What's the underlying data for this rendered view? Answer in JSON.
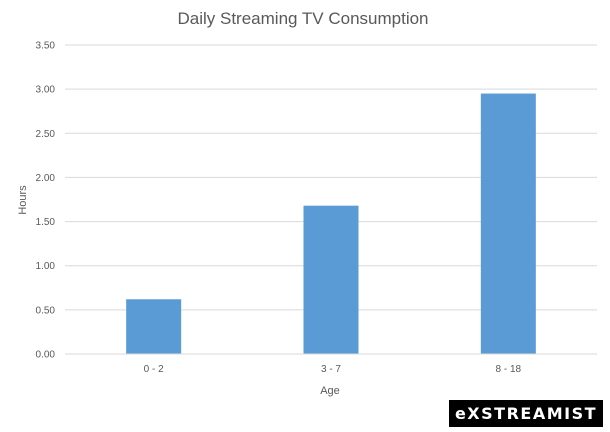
{
  "chart_data": {
    "type": "bar",
    "title": "Daily Streaming TV Consumption",
    "xlabel": "Age",
    "ylabel": "Hours",
    "categories": [
      "0 - 2",
      "3 - 7",
      "8 - 18"
    ],
    "values": [
      0.62,
      1.68,
      2.95
    ],
    "ylim": [
      0,
      3.5
    ],
    "yticks": [
      "0.00",
      "0.50",
      "1.00",
      "1.50",
      "2.00",
      "2.50",
      "3.00",
      "3.50"
    ],
    "grid": true,
    "bar_color": "#5b9bd5"
  },
  "watermark": {
    "text": "eXSTREAMIST"
  }
}
